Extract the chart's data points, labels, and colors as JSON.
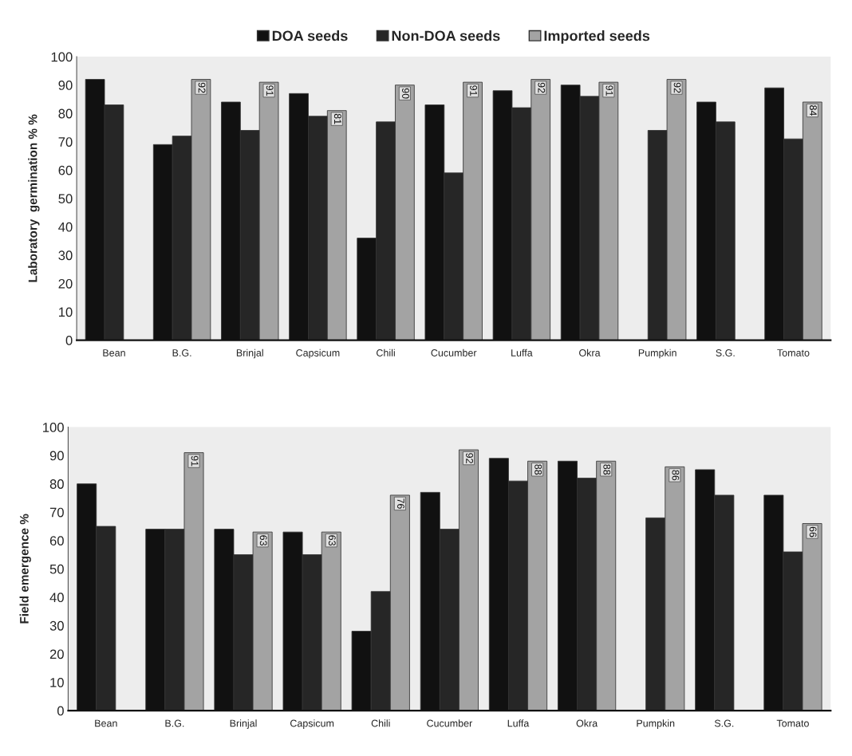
{
  "chart_data": [
    {
      "type": "bar",
      "ylabel": "Laboratory  germination % %",
      "categories": [
        "Bean",
        "B.G.",
        "Brinjal",
        "Capsicum",
        "Chili",
        "Cucumber",
        "Luffa",
        "Okra",
        "Pumpkin",
        "S.G.",
        "Tomato"
      ],
      "ylim": [
        0,
        100
      ],
      "yticks": [
        0,
        10,
        20,
        30,
        40,
        50,
        60,
        70,
        80,
        90,
        100
      ],
      "grid": false,
      "legend": "top",
      "series": [
        {
          "name": "DOA seeds",
          "color": "#111111",
          "values": [
            92,
            69,
            84,
            87,
            36,
            83,
            88,
            90,
            null,
            84,
            89
          ]
        },
        {
          "name": "Non-DOA seeds",
          "color": "#262626",
          "values": [
            83,
            72,
            74,
            79,
            77,
            59,
            82,
            86,
            74,
            77,
            71
          ]
        },
        {
          "name": "Imported seeds",
          "color": "#a3a3a3",
          "values": [
            null,
            92,
            91,
            81,
            90,
            91,
            92,
            91,
            92,
            null,
            84
          ],
          "value_labels": [
            null,
            "92",
            "91",
            "81",
            "90",
            "91",
            "92",
            "91",
            "92",
            null,
            "84"
          ]
        }
      ]
    },
    {
      "type": "bar",
      "ylabel": "Field emergence %",
      "categories": [
        "Bean",
        "B.G.",
        "Brinjal",
        "Capsicum",
        "Chili",
        "Cucumber",
        "Luffa",
        "Okra",
        "Pumpkin",
        "S.G.",
        "Tomato"
      ],
      "ylim": [
        0,
        100
      ],
      "yticks": [
        0,
        10,
        20,
        30,
        40,
        50,
        60,
        70,
        80,
        90,
        100
      ],
      "grid": false,
      "legend": false,
      "series": [
        {
          "color": "#111111",
          "values": [
            80,
            64,
            64,
            63,
            28,
            77,
            89,
            88,
            null,
            85,
            76
          ]
        },
        {
          "color": "#262626",
          "values": [
            65,
            64,
            55,
            55,
            42,
            64,
            81,
            82,
            68,
            76,
            56
          ]
        },
        {
          "color": "#a3a3a3",
          "values": [
            null,
            91,
            63,
            63,
            76,
            92,
            88,
            88,
            86,
            null,
            66
          ],
          "value_labels": [
            null,
            "91",
            "63",
            "63",
            "76",
            "92",
            "88",
            "88",
            "86",
            null,
            "66"
          ]
        }
      ]
    }
  ]
}
